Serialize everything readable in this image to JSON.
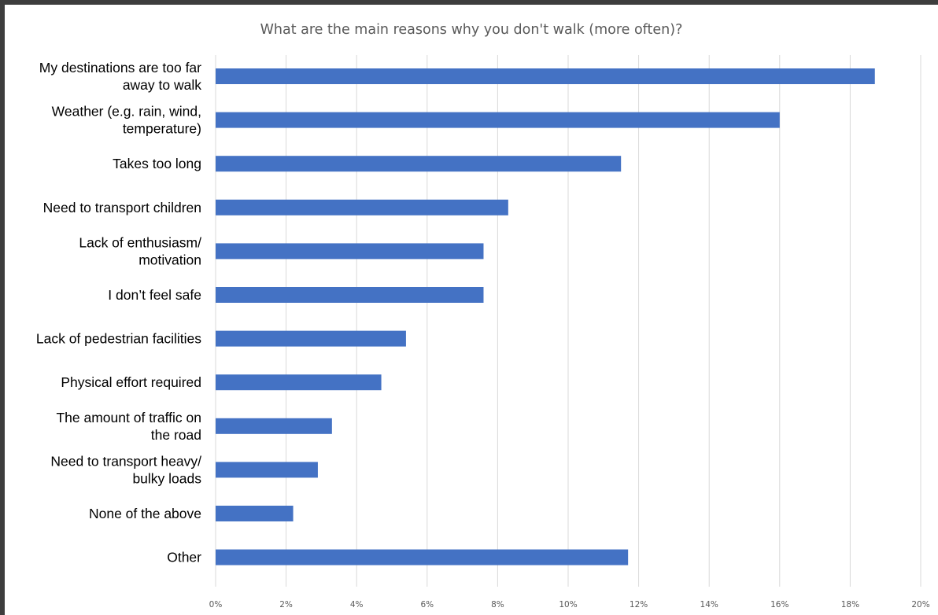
{
  "chart_data": {
    "type": "bar",
    "orientation": "horizontal",
    "title": "What are the main reasons why you don't walk (more often)?",
    "xlabel": "",
    "ylabel": "",
    "categories": [
      [
        "My destinations are too far",
        "away to walk"
      ],
      [
        "Weather (e.g. rain, wind,",
        "temperature)"
      ],
      [
        "Takes too long"
      ],
      [
        "Need to transport children"
      ],
      [
        "Lack of enthusiasm/",
        "motivation"
      ],
      [
        "I don’t feel safe"
      ],
      [
        "Lack of pedestrian facilities"
      ],
      [
        "Physical effort required"
      ],
      [
        "The amount of traffic on",
        "the road"
      ],
      [
        "Need to transport heavy/",
        "bulky loads"
      ],
      [
        "None of the above"
      ],
      [
        "Other"
      ]
    ],
    "values": [
      18.7,
      16.0,
      11.5,
      8.3,
      7.6,
      7.6,
      5.4,
      4.7,
      3.3,
      2.9,
      2.2,
      11.7
    ],
    "xlim": [
      0,
      20
    ],
    "ticks": [
      0,
      2,
      4,
      6,
      8,
      10,
      12,
      14,
      16,
      18,
      20
    ],
    "tick_suffix": "%",
    "grid": "vertical",
    "legend": "none",
    "bar_color": "#4472c4",
    "grid_color": "#d9d9d9"
  }
}
